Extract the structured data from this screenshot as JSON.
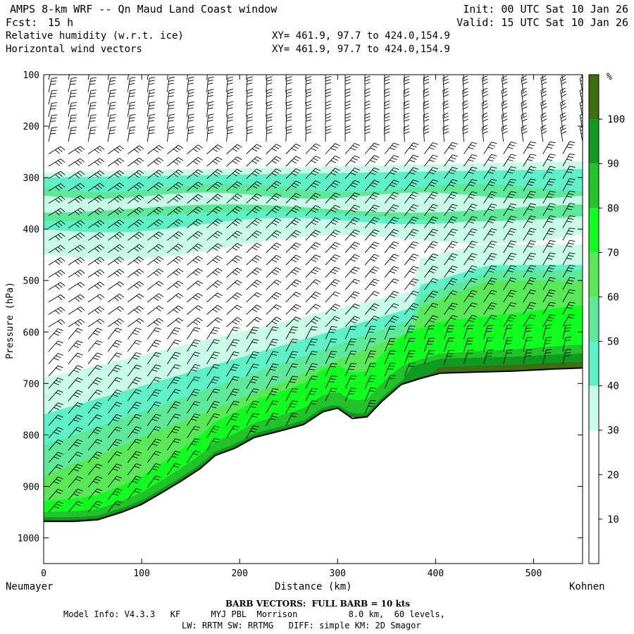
{
  "header": {
    "title": "AMPS 8-km WRF -- Qn Maud Land Coast window",
    "forecast_label": "Fcst:",
    "forecast_value": "15 h",
    "field1": "Relative humidity (w.r.t. ice)",
    "field2": "Horizontal wind vectors",
    "xy1": "XY= 461.9, 97.7 to 424.0,154.9",
    "xy2": "XY= 461.9, 97.7 to 424.0,154.9",
    "init": "Init: 00 UTC Sat 10 Jan 26",
    "valid": "Valid: 15 UTC Sat 10 Jan 26"
  },
  "chart_data": {
    "type": "heatmap",
    "title": "Cross-section: relative humidity (w.r.t. ice) and horizontal wind barbs",
    "xlabel": "Distance (km)",
    "ylabel": "Pressure (hPa)",
    "xlim": [
      0,
      550
    ],
    "ylim": [
      1050,
      100
    ],
    "x_ticks": [
      0,
      100,
      200,
      300,
      400,
      500
    ],
    "y_ticks": [
      100,
      200,
      300,
      400,
      500,
      600,
      700,
      800,
      900,
      1000
    ],
    "left_endpoint": "Neumayer",
    "right_endpoint": "Kohnen",
    "colorbar": {
      "unit": "%",
      "ticks": [
        10,
        20,
        30,
        40,
        50,
        60,
        70,
        80,
        90,
        100
      ],
      "bands": [
        {
          "from": 0,
          "to": 30,
          "color": "#ffffff"
        },
        {
          "from": 30,
          "to": 40,
          "color": "#c8fbe8"
        },
        {
          "from": 40,
          "to": 50,
          "color": "#5ef0c6"
        },
        {
          "from": 50,
          "to": 60,
          "color": "#5ee89a"
        },
        {
          "from": 60,
          "to": 70,
          "color": "#58e858"
        },
        {
          "from": 70,
          "to": 80,
          "color": "#10ff20"
        },
        {
          "from": 80,
          "to": 90,
          "color": "#22c22a"
        },
        {
          "from": 90,
          "to": 100,
          "color": "#0f9a22"
        },
        {
          "from": 100,
          "to": 110,
          "color": "#3f6e10"
        }
      ]
    },
    "terrain": [
      {
        "x": 0,
        "p": 968
      },
      {
        "x": 30,
        "p": 968
      },
      {
        "x": 55,
        "p": 965
      },
      {
        "x": 80,
        "p": 950
      },
      {
        "x": 100,
        "p": 935
      },
      {
        "x": 120,
        "p": 913
      },
      {
        "x": 140,
        "p": 890
      },
      {
        "x": 160,
        "p": 865
      },
      {
        "x": 175,
        "p": 840
      },
      {
        "x": 195,
        "p": 826
      },
      {
        "x": 215,
        "p": 805
      },
      {
        "x": 240,
        "p": 793
      },
      {
        "x": 265,
        "p": 780
      },
      {
        "x": 285,
        "p": 755
      },
      {
        "x": 300,
        "p": 748
      },
      {
        "x": 315,
        "p": 768
      },
      {
        "x": 330,
        "p": 765
      },
      {
        "x": 345,
        "p": 735
      },
      {
        "x": 365,
        "p": 702
      },
      {
        "x": 385,
        "p": 690
      },
      {
        "x": 405,
        "p": 680
      },
      {
        "x": 440,
        "p": 678
      },
      {
        "x": 480,
        "p": 676
      },
      {
        "x": 520,
        "p": 672
      },
      {
        "x": 550,
        "p": 670
      }
    ],
    "rh_layers": [
      {
        "range": "30-40",
        "desc": "thin upper moist band ~290-450 hPa across section"
      },
      {
        "range": "40-60",
        "desc": "core of upper band 300-400 hPa"
      },
      {
        "range": "40-90",
        "desc": "near-surface moist layer thickening toward Kohnen, up to ~500 hPa east of 400 km"
      }
    ],
    "wind_barbs_note": "BARB VECTORS: FULL BARB = 10 kts"
  },
  "bottom": {
    "left_place": "Neumayer",
    "xlabel": "Distance (km)",
    "right_place": "Kohnen"
  },
  "footer": {
    "barb_note": "BARB VECTORS:  FULL BARB = 10 kts",
    "model_line": "Model Info: V4.3.3   KF      MYJ PBL  Morrison          8.0 km,  60 levels,",
    "model_line2": "LW: RRTM SW: RRTMG   DIFF: simple KM: 2D Smagor"
  }
}
